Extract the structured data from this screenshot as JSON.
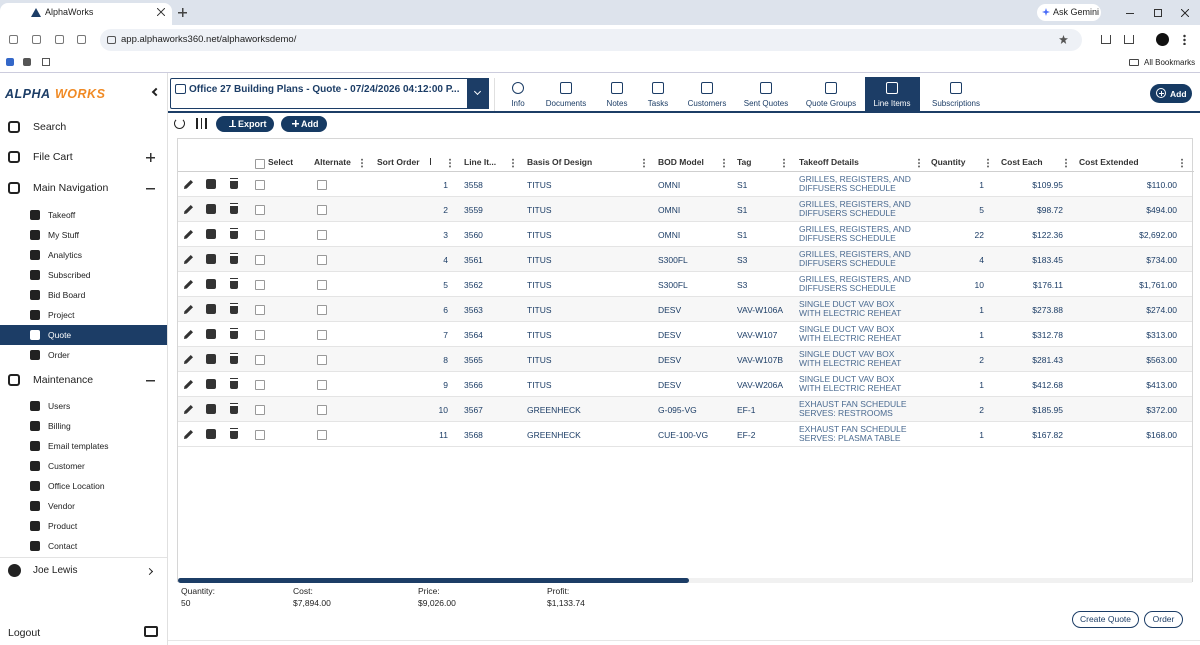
{
  "browser": {
    "tab_title": "AlphaWorks",
    "url": "app.alphaworks360.net/alphaworksdemo/",
    "ask_gemini": "Ask Gemini",
    "all_bookmarks": "All Bookmarks"
  },
  "sidebar": {
    "logo": [
      "ALPHA",
      "WORKS"
    ],
    "top": [
      "Search",
      "File Cart"
    ],
    "main_navigation": {
      "title": "Main Navigation",
      "items": [
        "Takeoff",
        "My Stuff",
        "Analytics",
        "Subscribed",
        "Bid Board",
        "Project",
        "Quote",
        "Order"
      ]
    },
    "maintenance": {
      "title": "Maintenance",
      "items": [
        "Users",
        "Billing",
        "Email templates",
        "Customer",
        "Office Location",
        "Vendor",
        "Product",
        "Contact"
      ]
    },
    "user": "Joe Lewis",
    "logout": "Logout"
  },
  "header": {
    "quote_select": "Office 27 Building Plans - Quote - 07/24/2026 04:12:00 P...",
    "tabs": [
      "Info",
      "Documents",
      "Notes",
      "Tasks",
      "Customers",
      "Sent Quotes",
      "Quote Groups",
      "Line Items",
      "Subscriptions"
    ],
    "add": "Add"
  },
  "toolbar": {
    "export": "Export",
    "add": "Add"
  },
  "table": {
    "columns": [
      "Select",
      "Alternate",
      "Sort Order",
      "Line It...",
      "Basis Of Design",
      "BOD Model",
      "Tag",
      "Takeoff Details",
      "Quantity",
      "Cost Each",
      "Cost Extended"
    ],
    "rows": [
      [
        1,
        3558,
        "TITUS",
        "OMNI",
        "S1",
        [
          "GRILLES, REGISTERS, AND",
          "DIFFUSERS SCHEDULE"
        ],
        1,
        "$109.95",
        "$110.00"
      ],
      [
        2,
        3559,
        "TITUS",
        "OMNI",
        "S1",
        [
          "GRILLES, REGISTERS, AND",
          "DIFFUSERS SCHEDULE"
        ],
        5,
        "$98.72",
        "$494.00"
      ],
      [
        3,
        3560,
        "TITUS",
        "OMNI",
        "S1",
        [
          "GRILLES, REGISTERS, AND",
          "DIFFUSERS SCHEDULE"
        ],
        22,
        "$122.36",
        "$2,692.00"
      ],
      [
        4,
        3561,
        "TITUS",
        "S300FL",
        "S3",
        [
          "GRILLES, REGISTERS, AND",
          "DIFFUSERS SCHEDULE"
        ],
        4,
        "$183.45",
        "$734.00"
      ],
      [
        5,
        3562,
        "TITUS",
        "S300FL",
        "S3",
        [
          "GRILLES, REGISTERS, AND",
          "DIFFUSERS SCHEDULE"
        ],
        10,
        "$176.11",
        "$1,761.00"
      ],
      [
        6,
        3563,
        "TITUS",
        "DESV",
        "VAV-W106A",
        [
          "SINGLE DUCT VAV BOX",
          "WITH ELECTRIC REHEAT"
        ],
        1,
        "$273.88",
        "$274.00"
      ],
      [
        7,
        3564,
        "TITUS",
        "DESV",
        "VAV-W107",
        [
          "SINGLE DUCT VAV BOX",
          "WITH ELECTRIC REHEAT"
        ],
        1,
        "$312.78",
        "$313.00"
      ],
      [
        8,
        3565,
        "TITUS",
        "DESV",
        "VAV-W107B",
        [
          "SINGLE DUCT VAV BOX",
          "WITH ELECTRIC REHEAT"
        ],
        2,
        "$281.43",
        "$563.00"
      ],
      [
        9,
        3566,
        "TITUS",
        "DESV",
        "VAV-W206A",
        [
          "SINGLE DUCT VAV BOX",
          "WITH ELECTRIC REHEAT"
        ],
        1,
        "$412.68",
        "$413.00"
      ],
      [
        10,
        3567,
        "GREENHECK",
        "G-095-VG",
        "EF-1",
        [
          "EXHAUST FAN SCHEDULE",
          "SERVES: RESTROOMS"
        ],
        2,
        "$185.95",
        "$372.00"
      ],
      [
        11,
        3568,
        "GREENHECK",
        "CUE-100-VG",
        "EF-2",
        [
          "EXHAUST FAN SCHEDULE",
          "SERVES: PLASMA TABLE"
        ],
        1,
        "$167.82",
        "$168.00"
      ]
    ]
  },
  "summary": [
    {
      "label": "Quantity:",
      "value": 50
    },
    {
      "label": "Cost:",
      "value": "$7,894.00"
    },
    {
      "label": "Price:",
      "value": "$9,026.00"
    },
    {
      "label": "Profit:",
      "value": "$1,133.74"
    }
  ],
  "actions": [
    "Create Quote",
    "Order"
  ]
}
